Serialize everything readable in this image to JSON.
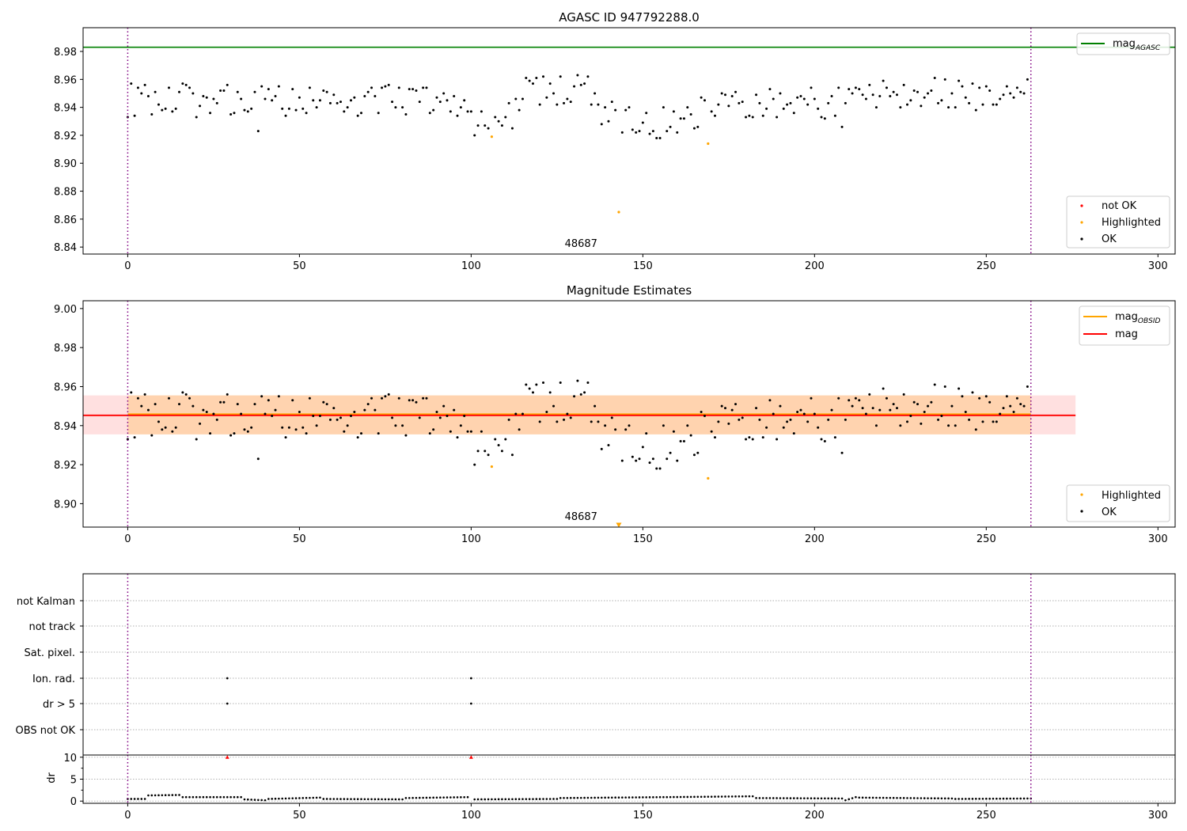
{
  "chart_data": [
    {
      "type": "scatter",
      "title": "AGASC ID 947792288.0",
      "xlim": [
        -13,
        305
      ],
      "ylim": [
        8.835,
        8.997
      ],
      "xticks": [
        0,
        50,
        100,
        150,
        200,
        250,
        300
      ],
      "yticks": [
        8.84,
        8.86,
        8.88,
        8.9,
        8.92,
        8.94,
        8.96,
        8.98
      ],
      "vlines": [
        0,
        263
      ],
      "obsid_label": {
        "text": "48687",
        "x": 132
      },
      "hline": {
        "name": "mag",
        "subscript": "AGASC",
        "y": 8.983,
        "color": "#008000"
      },
      "highlighted": [
        [
          106,
          8.919
        ],
        [
          143,
          8.865
        ],
        [
          169,
          8.914
        ]
      ],
      "legend_top": [
        {
          "key": "mag_agasc",
          "name": "mag",
          "subscript": "AGASC",
          "color": "#008000"
        }
      ],
      "legend_bottom": [
        {
          "key": "not_ok",
          "name": "not OK",
          "color": "#ff0000"
        },
        {
          "key": "highlighted",
          "name": "Highlighted",
          "color": "#ffa500"
        },
        {
          "key": "ok",
          "name": "OK",
          "color": "#000000"
        }
      ]
    },
    {
      "type": "scatter",
      "title": "Magnitude Estimates",
      "xlim": [
        -13,
        305
      ],
      "ylim": [
        8.888,
        9.004
      ],
      "xticks": [
        0,
        50,
        100,
        150,
        200,
        250,
        300
      ],
      "yticks": [
        8.9,
        8.92,
        8.94,
        8.96,
        8.98,
        9.0
      ],
      "vlines": [
        0,
        263
      ],
      "obsid_label": {
        "text": "48687",
        "x": 132
      },
      "mag_line": {
        "y": 8.9455,
        "x0": -13,
        "x1": 276,
        "band": [
          8.9355,
          8.9555
        ],
        "color": "#ff0000"
      },
      "mag_obsid_line": {
        "y": 8.9455,
        "x0": 0,
        "x1": 263,
        "band": [
          8.9355,
          8.9555
        ],
        "color": "#ffa500"
      },
      "highlighted": [
        [
          106,
          8.919
        ],
        [
          169,
          8.913
        ]
      ],
      "offscale_marker": {
        "x": 143,
        "y": 8.889
      },
      "legend_top": [
        {
          "key": "mag_obsid",
          "name": "mag",
          "subscript": "OBSID",
          "color": "#ffa500"
        },
        {
          "key": "mag",
          "name": "mag",
          "subscript": "",
          "color": "#ff0000"
        }
      ],
      "legend_bottom": [
        {
          "key": "highlighted",
          "name": "Highlighted",
          "color": "#ffa500"
        },
        {
          "key": "ok",
          "name": "OK",
          "color": "#000000"
        }
      ]
    },
    {
      "type": "scatter",
      "categories": [
        "not Kalman",
        "not track",
        "Sat. pixel.",
        "Ion. rad.",
        "dr > 5",
        "OBS not OK"
      ],
      "flags": [
        {
          "category": "Ion. rad.",
          "x": [
            29,
            100
          ]
        },
        {
          "category": "dr > 5",
          "x": [
            29,
            100
          ]
        }
      ],
      "xlim": [
        -13,
        305
      ],
      "xticks": [
        0,
        50,
        100,
        150,
        200,
        250,
        300
      ],
      "vlines": [
        0,
        263
      ]
    },
    {
      "type": "scatter",
      "ylabel": "dr",
      "xlim": [
        -13,
        305
      ],
      "ylim": [
        -0.5,
        10.5
      ],
      "xticks": [
        0,
        50,
        100,
        150,
        200,
        250,
        300
      ],
      "yticks": [
        0,
        5,
        10
      ],
      "vlines": [
        0,
        263
      ],
      "capped": [
        [
          29,
          10
        ],
        [
          100,
          10
        ]
      ],
      "segments": [
        {
          "x0": 0,
          "x1": 5,
          "y0": 0.5,
          "y1": 0.5
        },
        {
          "x0": 6,
          "x1": 15,
          "y0": 1.3,
          "y1": 1.4
        },
        {
          "x0": 16,
          "x1": 33,
          "y0": 0.9,
          "y1": 0.9
        },
        {
          "x0": 34,
          "x1": 40,
          "y0": 0.4,
          "y1": 0.2
        },
        {
          "x0": 41,
          "x1": 56,
          "y0": 0.5,
          "y1": 0.8
        },
        {
          "x0": 57,
          "x1": 80,
          "y0": 0.5,
          "y1": 0.4
        },
        {
          "x0": 81,
          "x1": 99,
          "y0": 0.7,
          "y1": 0.9
        },
        {
          "x0": 101,
          "x1": 125,
          "y0": 0.4,
          "y1": 0.5
        },
        {
          "x0": 126,
          "x1": 155,
          "y0": 0.7,
          "y1": 0.9
        },
        {
          "x0": 156,
          "x1": 182,
          "y0": 0.9,
          "y1": 1.1
        },
        {
          "x0": 183,
          "x1": 208,
          "y0": 0.7,
          "y1": 0.6
        },
        {
          "x0": 209,
          "x1": 212,
          "y0": 0.2,
          "y1": 0.9
        },
        {
          "x0": 213,
          "x1": 240,
          "y0": 0.8,
          "y1": 0.6
        },
        {
          "x0": 241,
          "x1": 263,
          "y0": 0.5,
          "y1": 0.6
        }
      ]
    }
  ]
}
